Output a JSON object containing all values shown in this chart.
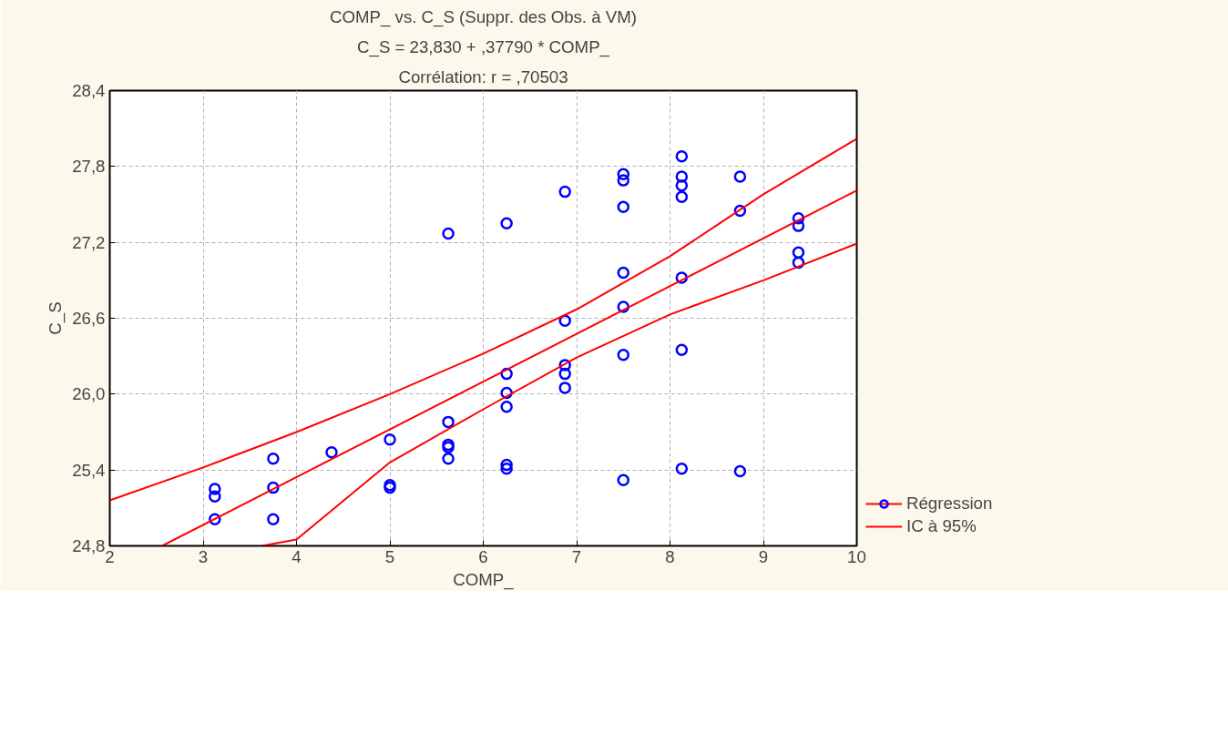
{
  "chart_data": {
    "type": "scatter",
    "title": "COMP_ vs. C_S (Suppr. des Obs. à VM)",
    "subtitle": "C_S = 23,830 + ,37790 * COMP_",
    "annotations": [
      "Corrélation: r = ,70503"
    ],
    "xlabel": "COMP_",
    "ylabel": "C_S",
    "series": [
      {
        "color": "#0000ff",
        "marker": "circle",
        "x": [
          3.125,
          3.125,
          3.125,
          3.75,
          3.75,
          3.75,
          4.375,
          5.0,
          5.0,
          5.0,
          5.625,
          5.625,
          5.625,
          5.625,
          5.625,
          6.25,
          6.25,
          6.25,
          6.25,
          6.25,
          6.25,
          6.875,
          6.875,
          6.875,
          6.875,
          6.875,
          7.5,
          7.5,
          7.5,
          7.5,
          7.5,
          7.5,
          7.5,
          8.125,
          8.125,
          8.125,
          8.125,
          8.125,
          8.125,
          8.125,
          8.75,
          8.75,
          8.75,
          9.375,
          9.375,
          9.375,
          9.375
        ],
        "values": [
          25.25,
          25.19,
          25.01,
          25.49,
          25.26,
          25.01,
          25.54,
          25.64,
          25.28,
          25.26,
          27.27,
          25.78,
          25.6,
          25.58,
          25.49,
          27.35,
          26.16,
          26.01,
          25.9,
          25.44,
          25.41,
          27.6,
          26.58,
          26.23,
          26.16,
          26.05,
          27.74,
          27.69,
          27.48,
          26.96,
          26.69,
          26.31,
          25.32,
          27.88,
          27.72,
          27.65,
          27.56,
          26.92,
          26.35,
          25.41,
          27.72,
          27.45,
          25.39,
          27.39,
          27.33,
          27.12,
          27.04
        ]
      },
      {
        "type": "line",
        "name": "Régression",
        "color": "#ff0000",
        "x": [
          2.56,
          10
        ],
        "values": [
          24.8,
          27.61
        ]
      },
      {
        "type": "line",
        "name": "IC à 95%",
        "color": "#ff0000",
        "x": [
          2,
          3,
          4,
          5,
          6,
          7,
          8,
          9,
          10
        ],
        "values": [
          25.16,
          25.42,
          25.7,
          26.0,
          26.32,
          26.67,
          27.09,
          27.58,
          28.02
        ]
      },
      {
        "type": "line",
        "color": "#ff0000",
        "x": [
          3.63,
          4,
          5,
          6,
          7,
          8,
          9,
          10
        ],
        "values": [
          24.8,
          24.85,
          25.46,
          25.88,
          26.29,
          26.63,
          26.9,
          27.19
        ]
      }
    ],
    "xlim": [
      2,
      10
    ],
    "xticks": [
      2,
      3,
      4,
      5,
      6,
      7,
      8,
      9,
      10
    ],
    "ylim": [
      24.8,
      28.4
    ],
    "yticks": [
      {
        "value": 24.8,
        "label": "24,8"
      },
      {
        "value": 25.4,
        "label": "25,4"
      },
      {
        "value": 26.0,
        "label": "26,0"
      },
      {
        "value": 26.6,
        "label": "26,6"
      },
      {
        "value": 27.2,
        "label": "27,2"
      },
      {
        "value": 27.8,
        "label": "27,8"
      },
      {
        "value": 28.4,
        "label": "28,4"
      }
    ],
    "grid": true,
    "legend": "right"
  }
}
